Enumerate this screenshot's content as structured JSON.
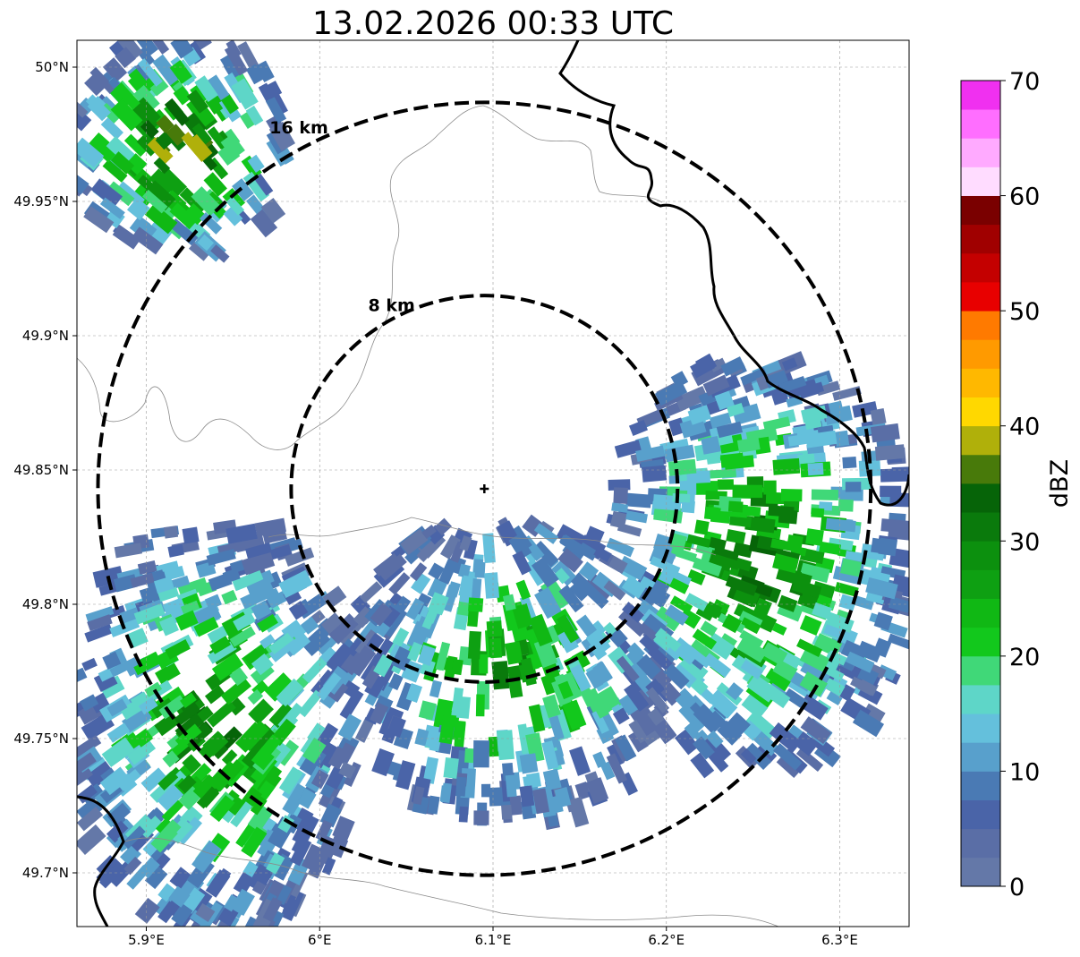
{
  "title": "13.02.2026 00:33 UTC",
  "map": {
    "lon_range": [
      5.86,
      6.34
    ],
    "lat_range": [
      49.68,
      50.01
    ],
    "radar_site": {
      "lon": 6.095,
      "lat": 49.843
    },
    "lon_ticks": [
      {
        "value": 5.9,
        "label": "5.9°E"
      },
      {
        "value": 6.0,
        "label": "6°E"
      },
      {
        "value": 6.1,
        "label": "6.1°E"
      },
      {
        "value": 6.2,
        "label": "6.2°E"
      },
      {
        "value": 6.3,
        "label": "6.3°E"
      }
    ],
    "lat_ticks": [
      {
        "value": 50.0,
        "label": "50°N"
      },
      {
        "value": 49.95,
        "label": "49.95°N"
      },
      {
        "value": 49.9,
        "label": "49.9°N"
      },
      {
        "value": 49.85,
        "label": "49.85°N"
      },
      {
        "value": 49.8,
        "label": "49.8°N"
      },
      {
        "value": 49.75,
        "label": "49.75°N"
      },
      {
        "value": 49.7,
        "label": "49.7°N"
      }
    ],
    "range_rings": [
      {
        "radius_km": 8,
        "label": "8 km"
      },
      {
        "radius_km": 16,
        "label": "16 km"
      }
    ],
    "gridlines": true
  },
  "colorbar": {
    "label": "dBZ",
    "min": 0,
    "max": 70,
    "ticks": [
      {
        "value": 0,
        "label": "0"
      },
      {
        "value": 10,
        "label": "10"
      },
      {
        "value": 20,
        "label": "20"
      },
      {
        "value": 30,
        "label": "30"
      },
      {
        "value": 40,
        "label": "40"
      },
      {
        "value": 50,
        "label": "50"
      },
      {
        "value": 60,
        "label": "60"
      },
      {
        "value": 70,
        "label": "70"
      }
    ],
    "colors": [
      "#6478a8",
      "#5a6ea6",
      "#4a64a8",
      "#4a7ab4",
      "#58a0cc",
      "#64c0dc",
      "#5ed6c8",
      "#40d878",
      "#12c81c",
      "#10b814",
      "#0ea012",
      "#0c900e",
      "#0a7a0c",
      "#066408",
      "#487a0a",
      "#b0b00a",
      "#ffd800",
      "#ffb800",
      "#ff9a00",
      "#ff7a00",
      "#e80000",
      "#c40000",
      "#a00000",
      "#7a0000",
      "#ffdcff",
      "#ffaaff",
      "#ff6eff",
      "#f030f0"
    ]
  },
  "echo_bands": [
    {
      "name": "western-band",
      "lon": [
        5.86,
        6.02
      ],
      "lat": [
        49.68,
        49.83
      ],
      "peak_dbz": 33
    },
    {
      "name": "central-band",
      "lon": [
        6.02,
        6.2
      ],
      "lat": [
        49.72,
        49.83
      ],
      "peak_dbz": 30
    },
    {
      "name": "eastern-band",
      "lon": [
        6.17,
        6.34
      ],
      "lat": [
        49.74,
        49.89
      ],
      "peak_dbz": 34
    },
    {
      "name": "northwest-cells",
      "lon": [
        5.86,
        5.98
      ],
      "lat": [
        49.93,
        50.01
      ],
      "peak_dbz": 40
    }
  ]
}
